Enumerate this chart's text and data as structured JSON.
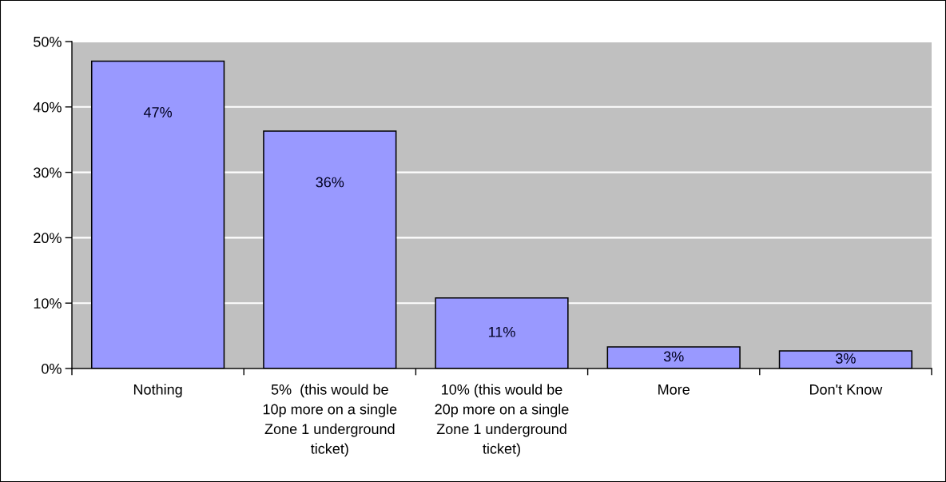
{
  "chart_data": {
    "type": "bar",
    "categories": [
      "Nothing",
      "5%  (this would be\n10p more on a single\nZone 1 underground\nticket)",
      "10% (this would be\n20p more on a single\nZone 1 underground\nticket)",
      "More",
      "Don't Know"
    ],
    "values": [
      47,
      36.3,
      10.8,
      3.3,
      2.7
    ],
    "value_labels": [
      "47%",
      "36%",
      "11%",
      "3%",
      "3%"
    ],
    "color": "#9999ff",
    "ylim": [
      0,
      50
    ],
    "yticks": [
      {
        "value": 0,
        "label": "0%"
      },
      {
        "value": 10,
        "label": "10%"
      },
      {
        "value": 20,
        "label": "20%"
      },
      {
        "value": 30,
        "label": "30%"
      },
      {
        "value": 40,
        "label": "40%"
      },
      {
        "value": 50,
        "label": "50%"
      }
    ],
    "grid": "y"
  }
}
